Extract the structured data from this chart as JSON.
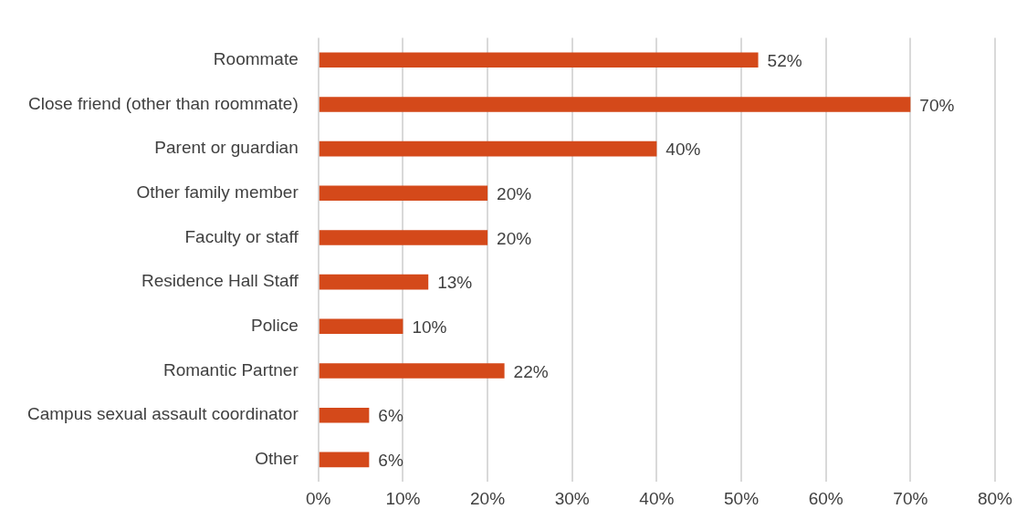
{
  "chart_data": {
    "type": "bar",
    "orientation": "horizontal",
    "categories": [
      "Roommate",
      "Close friend (other than roommate)",
      "Parent or guardian",
      "Other family member",
      "Faculty or staff",
      "Residence Hall Staff",
      "Police",
      "Romantic Partner",
      "Campus sexual assault coordinator",
      "Other"
    ],
    "values": [
      52,
      70,
      40,
      20,
      20,
      13,
      10,
      22,
      6,
      6
    ],
    "value_labels": [
      "52%",
      "70%",
      "40%",
      "20%",
      "20%",
      "13%",
      "10%",
      "22%",
      "6%",
      "6%"
    ],
    "color": "#d4491a",
    "xlim": [
      0,
      80
    ],
    "xticks": [
      {
        "value": 0,
        "label": "0%"
      },
      {
        "value": 10,
        "label": "10%"
      },
      {
        "value": 20,
        "label": "20%"
      },
      {
        "value": 30,
        "label": "30%"
      },
      {
        "value": 40,
        "label": "40%"
      },
      {
        "value": 50,
        "label": "50%"
      },
      {
        "value": 60,
        "label": "60%"
      },
      {
        "value": 70,
        "label": "70%"
      },
      {
        "value": 80,
        "label": "80%"
      }
    ],
    "grid": "x",
    "legend": false
  }
}
